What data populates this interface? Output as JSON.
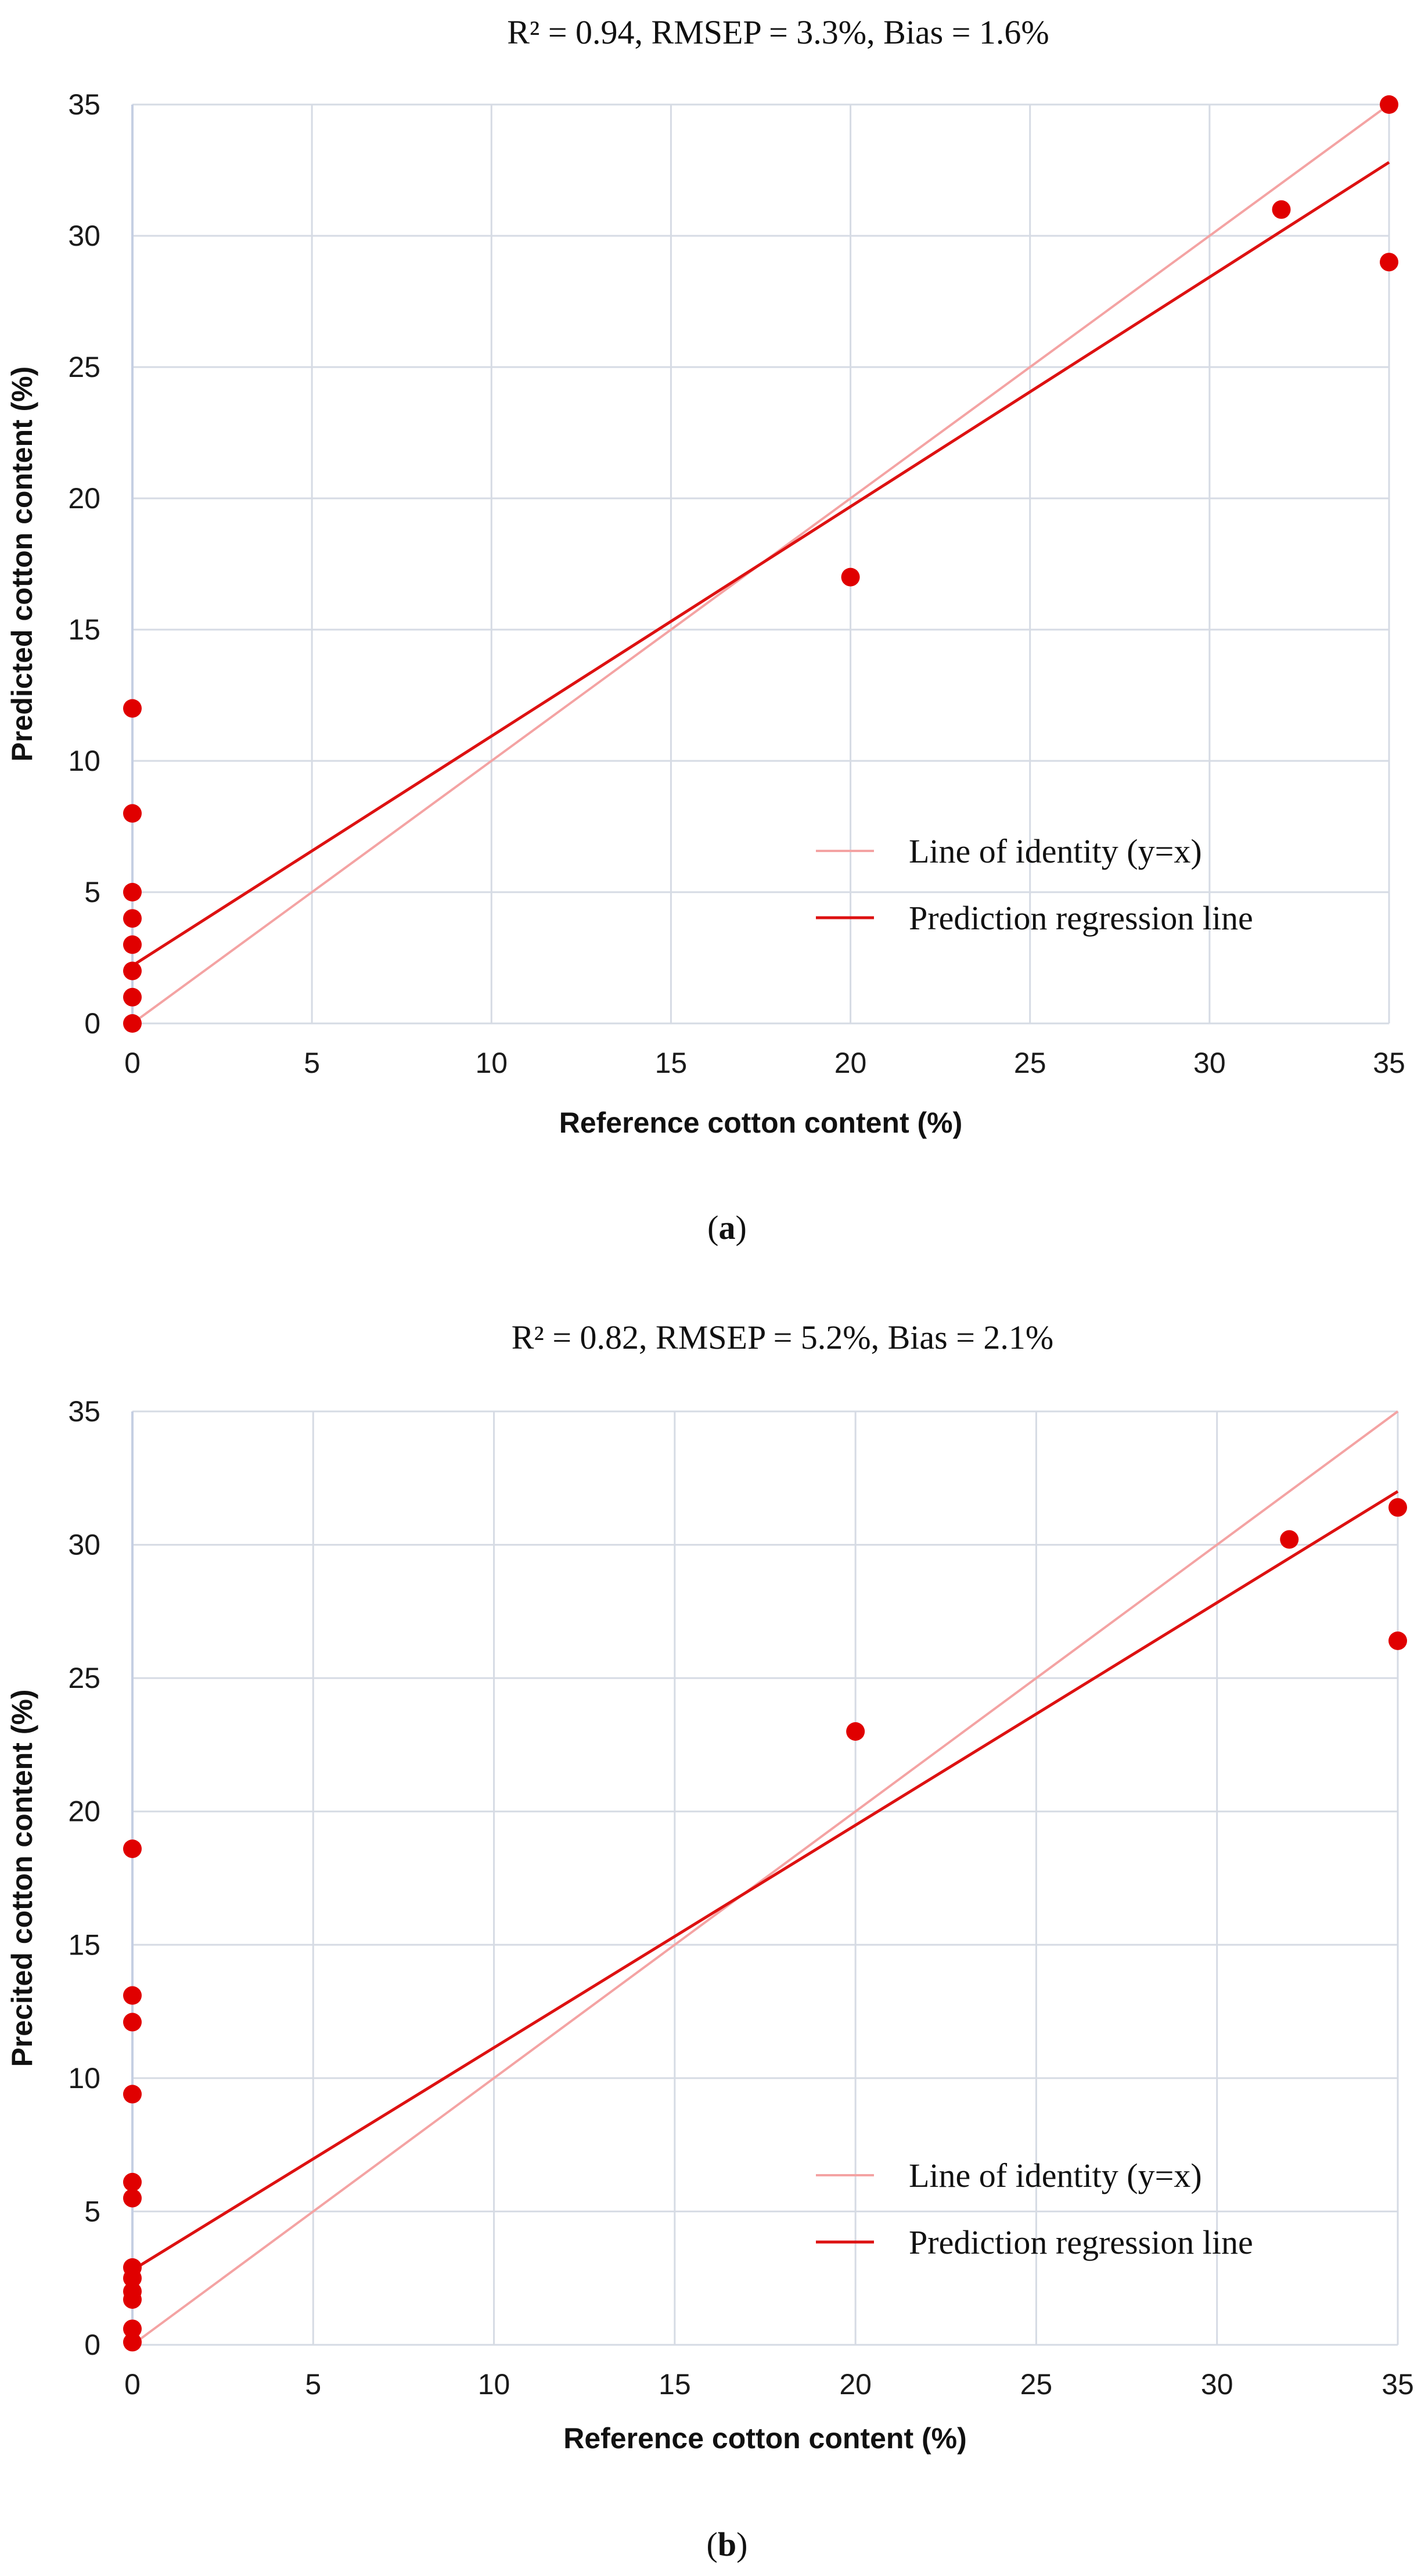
{
  "chart_data": [
    {
      "id": "a",
      "type": "scatter",
      "title": "R² = 0.94, RMSEP = 3.3%, Bias = 1.6%",
      "xlabel": "Reference cotton content (%)",
      "ylabel": "Predicted cotton content (%)",
      "xlim": [
        0,
        35
      ],
      "ylim": [
        0,
        35
      ],
      "xticks": [
        0,
        5,
        10,
        15,
        20,
        25,
        30,
        35
      ],
      "yticks": [
        0,
        5,
        10,
        15,
        20,
        25,
        30,
        35
      ],
      "grid": true,
      "caption_text": "a",
      "legend_position": "lower-right",
      "color": "#e00000",
      "points": [
        {
          "x": 0,
          "y": 12
        },
        {
          "x": 0,
          "y": 8
        },
        {
          "x": 0,
          "y": 5
        },
        {
          "x": 0,
          "y": 4
        },
        {
          "x": 0,
          "y": 3
        },
        {
          "x": 0,
          "y": 2
        },
        {
          "x": 0,
          "y": 1
        },
        {
          "x": 0,
          "y": 0
        },
        {
          "x": 20,
          "y": 17
        },
        {
          "x": 32,
          "y": 31
        },
        {
          "x": 35,
          "y": 35
        },
        {
          "x": 35,
          "y": 29
        }
      ],
      "lines": [
        {
          "name": "Line of identity (y=x)",
          "from": [
            0,
            0
          ],
          "to": [
            35,
            35
          ],
          "color": "#f4a3a3"
        },
        {
          "name": "Prediction regression line",
          "from": [
            0,
            2.2
          ],
          "to": [
            35,
            32.8
          ],
          "color": "#dd1111"
        }
      ]
    },
    {
      "id": "b",
      "type": "scatter",
      "title": "R² = 0.82, RMSEP = 5.2%, Bias = 2.1%",
      "xlabel": "Reference cotton content (%)",
      "ylabel": "Precited cotton content (%)",
      "xlim": [
        0,
        35
      ],
      "ylim": [
        0,
        35
      ],
      "xticks": [
        0,
        5,
        10,
        15,
        20,
        25,
        30,
        35
      ],
      "yticks": [
        0,
        5,
        10,
        15,
        20,
        25,
        30,
        35
      ],
      "grid": true,
      "caption_text": "b",
      "legend_position": "lower-right",
      "color": "#e00000",
      "points": [
        {
          "x": 0,
          "y": 18.6
        },
        {
          "x": 0,
          "y": 13.1
        },
        {
          "x": 0,
          "y": 12.1
        },
        {
          "x": 0,
          "y": 9.4
        },
        {
          "x": 0,
          "y": 6.1
        },
        {
          "x": 0,
          "y": 5.5
        },
        {
          "x": 0,
          "y": 2.9
        },
        {
          "x": 0,
          "y": 2.5
        },
        {
          "x": 0,
          "y": 2.0
        },
        {
          "x": 0,
          "y": 1.7
        },
        {
          "x": 0,
          "y": 0.6
        },
        {
          "x": 0,
          "y": 0.1
        },
        {
          "x": 20,
          "y": 23
        },
        {
          "x": 32,
          "y": 30.2
        },
        {
          "x": 35,
          "y": 31.4
        },
        {
          "x": 35,
          "y": 26.4
        }
      ],
      "lines": [
        {
          "name": "Line of identity (y=x)",
          "from": [
            0,
            0
          ],
          "to": [
            35,
            35
          ],
          "color": "#f4a3a3"
        },
        {
          "name": "Prediction regression line",
          "from": [
            0,
            2.8
          ],
          "to": [
            35,
            32
          ],
          "color": "#dd1111"
        }
      ]
    }
  ]
}
